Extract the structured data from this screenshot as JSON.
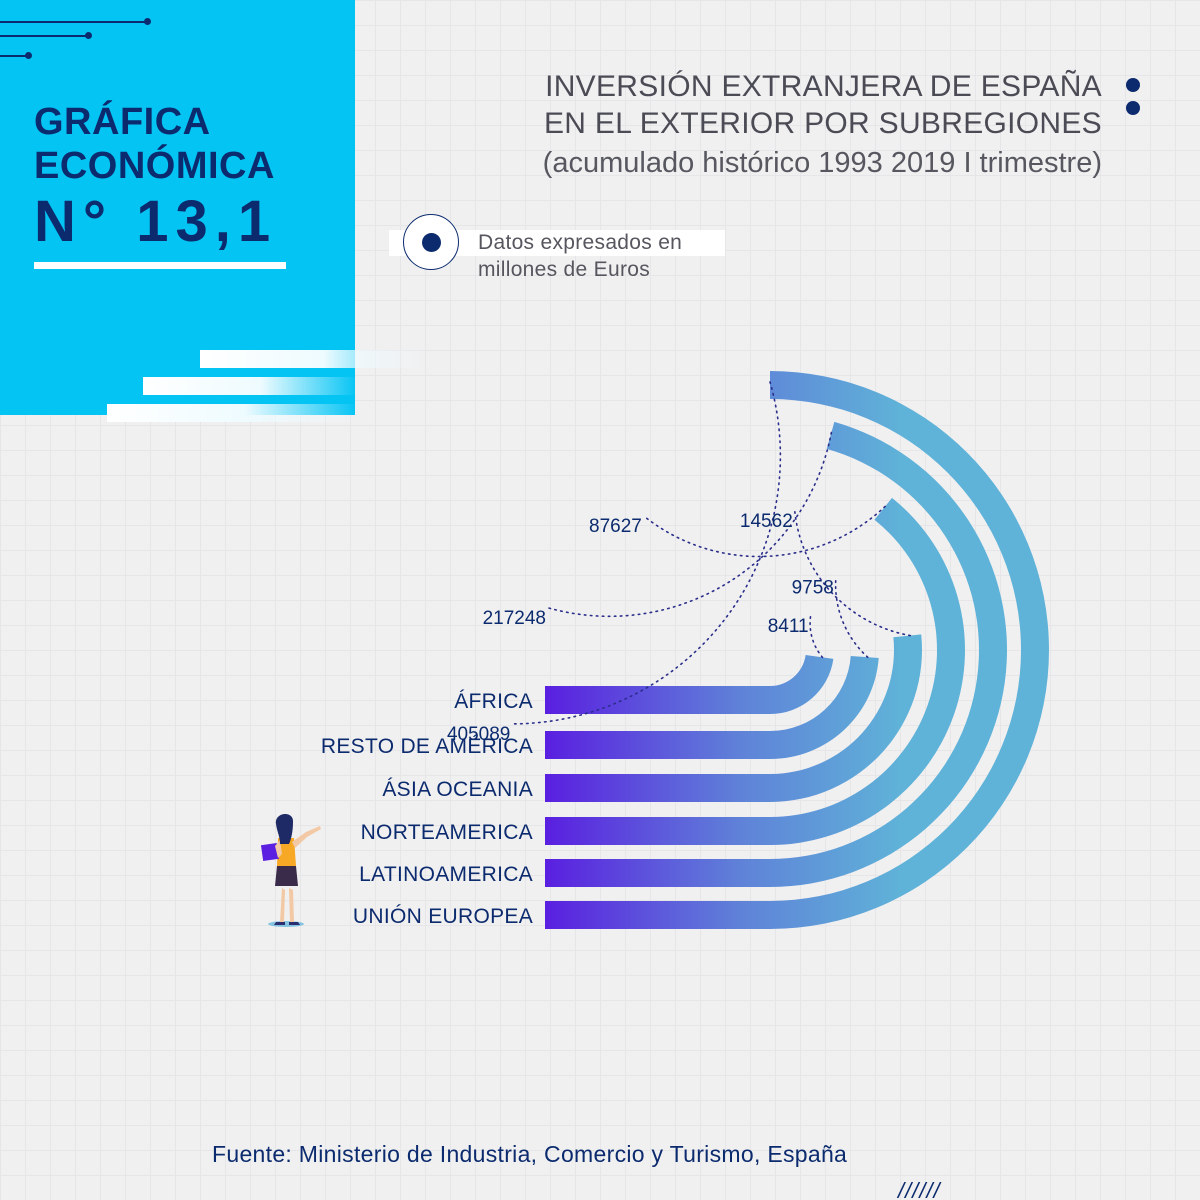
{
  "header": {
    "badge_line1": "GRÁFICA",
    "badge_line2": "ECONÓMICA",
    "badge_number": "N° 13,1",
    "title_line1": "INVERSIÓN EXTRANJERA DE ESPAÑA",
    "title_line2": "EN EL EXTERIOR POR SUBREGIONES",
    "subtitle": "(acumulado histórico 1993 2019 I trimestre)"
  },
  "note": {
    "line1": "Datos expresados en",
    "line2": "millones de Euros"
  },
  "chart_data": {
    "type": "radial-bar",
    "units": "millones de Euros",
    "categories": [
      "ÁFRICA",
      "RESTO DE AMÉRICA",
      "ÁSIA OCEANIA",
      "NORTEAMERICA",
      "LATINOAMERICA",
      "UNIÓN EUROPEA"
    ],
    "values": [
      8411,
      9758,
      14562,
      87627,
      217248,
      405089
    ],
    "value_labels": [
      "8411",
      "9758",
      "14562",
      "87627",
      "217248",
      "405089"
    ],
    "colors": {
      "start": "#5a1fe0",
      "end": "#5fb2d8",
      "guide": "#2a2e8a",
      "label": "#0c2b6e"
    }
  },
  "footer": {
    "source": "Fuente: Ministerio de Industria, Comercio y Turismo, España",
    "slashes": "//////"
  }
}
